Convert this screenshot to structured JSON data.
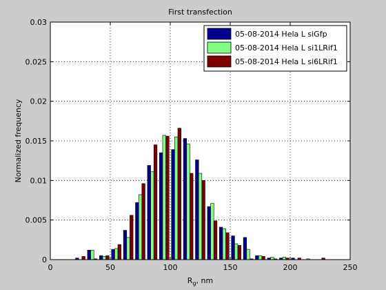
{
  "chart_data": {
    "type": "bar",
    "title": "First transfection",
    "xlabel_main": "R",
    "xlabel_sub": "g",
    "xlabel_rest": ", nm",
    "ylabel": "Normalized frequency",
    "xlim": [
      0,
      250
    ],
    "ylim": [
      0,
      0.03
    ],
    "xticks": [
      0,
      50,
      100,
      150,
      200,
      250
    ],
    "yticks": [
      0,
      0.005,
      0.01,
      0.015,
      0.02,
      0.025,
      0.03
    ],
    "xtick_labels": [
      "0",
      "50",
      "100",
      "150",
      "200",
      "250"
    ],
    "ytick_labels": [
      "0",
      "0.005",
      "0.01",
      "0.015",
      "0.02",
      "0.025",
      "0.03"
    ],
    "grid": true,
    "legend_position": "top-right",
    "bin_width": 10,
    "x": [
      25,
      35,
      45,
      55,
      65,
      75,
      85,
      95,
      105,
      115,
      125,
      135,
      145,
      155,
      165,
      175,
      185,
      195,
      205,
      215,
      225
    ],
    "series": [
      {
        "name": "05-08-2014 Hela L siGfp",
        "color": "#00008f",
        "values": [
          0.0002,
          0.0012,
          0.0005,
          0.0013,
          0.0037,
          0.0072,
          0.0119,
          0.0135,
          0.0139,
          0.0153,
          0.0126,
          0.0067,
          0.0041,
          0.003,
          0.0028,
          0.0005,
          0.0002,
          0.0002,
          0.0002,
          0,
          0
        ]
      },
      {
        "name": "05-08-2014 Hela L si1LRif1",
        "color": "#80ff80",
        "values": [
          0.0,
          0.0012,
          0.0004,
          0.0014,
          0.0028,
          0.0082,
          0.0111,
          0.0157,
          0.0155,
          0.0146,
          0.0109,
          0.0071,
          0.0039,
          0.002,
          0.0013,
          0.0005,
          0.0003,
          0.0003,
          0,
          0.0001,
          0
        ]
      },
      {
        "name": "05-08-2014 Hela L si6LRif1",
        "color": "#800000",
        "values": [
          0.0004,
          0.0001,
          0.0005,
          0.0019,
          0.0056,
          0.0096,
          0.0145,
          0.0156,
          0.0166,
          0.0109,
          0.01,
          0.0049,
          0.0034,
          0.0018,
          0.0001,
          0.0004,
          0.0001,
          0.0002,
          0.0002,
          0,
          0.0002
        ]
      }
    ]
  }
}
